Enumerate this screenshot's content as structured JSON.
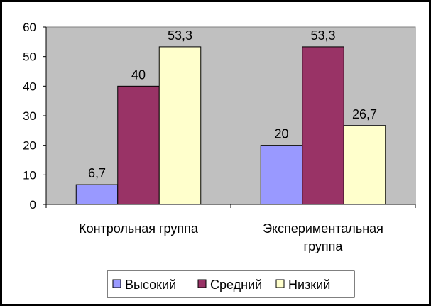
{
  "chart_data": {
    "type": "bar",
    "categories": [
      "Контрольная группа",
      "Экспериментальная группа"
    ],
    "category_label_lines": [
      [
        "Контрольная группа"
      ],
      [
        "Экспериментальная",
        "группа"
      ]
    ],
    "series": [
      {
        "name": "Высокий",
        "values": [
          6.7,
          20
        ],
        "labels": [
          "6,7",
          "20"
        ],
        "color": "#9999FF"
      },
      {
        "name": "Средний",
        "values": [
          40,
          53.3
        ],
        "labels": [
          "40",
          "53,3"
        ],
        "color": "#993366"
      },
      {
        "name": "Низкий",
        "values": [
          53.3,
          26.7
        ],
        "labels": [
          "53,3",
          "26,7"
        ],
        "color": "#FFFFCC"
      }
    ],
    "ylim": [
      0,
      60
    ],
    "yticks": [
      0,
      10,
      20,
      30,
      40,
      50,
      60
    ],
    "grid": false,
    "plot_background": "#C0C0C0",
    "legend_position": "bottom"
  }
}
